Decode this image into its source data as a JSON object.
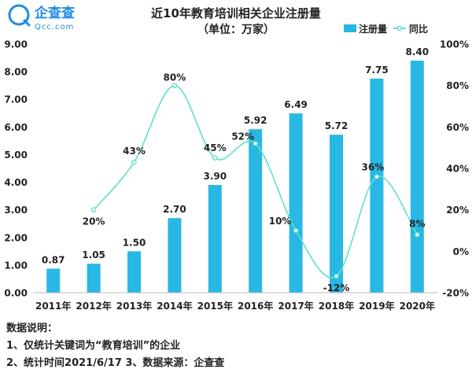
{
  "logo": {
    "name": "企查查",
    "domain": "Qcc.com",
    "brand_color": "#1e8be6"
  },
  "chart_data": {
    "type": "bar",
    "title": "近10年教育培训相关企业注册量",
    "subtitle": "（单位：万家）",
    "categories": [
      "2011年",
      "2012年",
      "2013年",
      "2014年",
      "2015年",
      "2016年",
      "2017年",
      "2018年",
      "2019年",
      "2020年"
    ],
    "series": [
      {
        "name": "注册量",
        "type": "bar",
        "axis": "left",
        "color": "#29b8e3",
        "values": [
          0.87,
          1.05,
          1.5,
          2.7,
          3.9,
          5.92,
          6.49,
          5.72,
          7.75,
          8.4
        ],
        "labels": [
          "0.87",
          "1.05",
          "1.50",
          "2.70",
          "3.90",
          "5.92",
          "6.49",
          "5.72",
          "7.75",
          "8.40"
        ]
      },
      {
        "name": "同比",
        "type": "line",
        "axis": "right",
        "color": "#5fe0cc",
        "values": [
          null,
          20,
          43,
          80,
          45,
          52,
          10,
          -12,
          36,
          8
        ],
        "labels": [
          "",
          "20%",
          "43%",
          "80%",
          "45%",
          "52%",
          "10%",
          "-12%",
          "36%",
          "8%"
        ]
      }
    ],
    "y_left": {
      "range": [
        0,
        9
      ],
      "ticks": [
        "0.00",
        "1.00",
        "2.00",
        "3.00",
        "4.00",
        "5.00",
        "6.00",
        "7.00",
        "8.00",
        "9.00"
      ]
    },
    "y_right": {
      "range": [
        -20,
        100
      ],
      "ticks": [
        "-20%",
        "0%",
        "20%",
        "40%",
        "60%",
        "80%",
        "100%"
      ]
    },
    "legend_position": "top-right",
    "grid": false
  },
  "notes": {
    "heading": "数据说明：",
    "line1": "1、仅统计关键词为“教育培训”的企业",
    "line2": "2、统计时间2021/6/17   3、数据来源：企查查"
  }
}
